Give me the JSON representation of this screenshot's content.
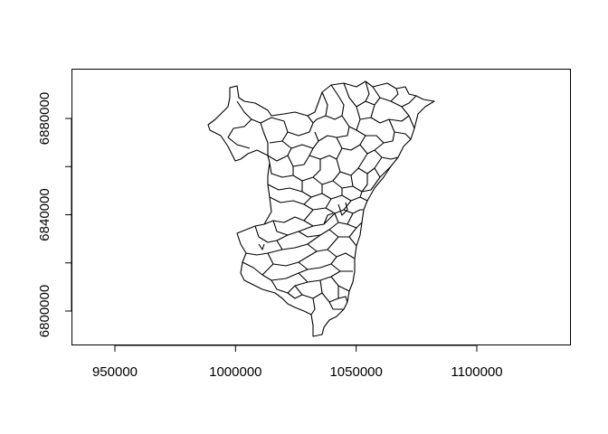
{
  "chart_data": {
    "type": "map",
    "title": "",
    "xlabel": "",
    "ylabel": "",
    "xlim": [
      930000,
      1140000
    ],
    "ylim": [
      6785000,
      6900000
    ],
    "x_ticks": [
      950000,
      1000000,
      1050000,
      1100000
    ],
    "y_ticks": [
      6800000,
      6840000,
      6880000
    ],
    "x_tick_labels": [
      "950000",
      "1000000",
      "1050000",
      "1100000"
    ],
    "y_tick_labels": [
      "6800000",
      "6840000",
      "6880000"
    ],
    "y_minor_ticks": [
      6820000,
      6860000
    ],
    "grid": false,
    "legend": "none",
    "feature": "administrative subdivisions (outline map)",
    "line_color": "#000000",
    "background": "#ffffff"
  }
}
